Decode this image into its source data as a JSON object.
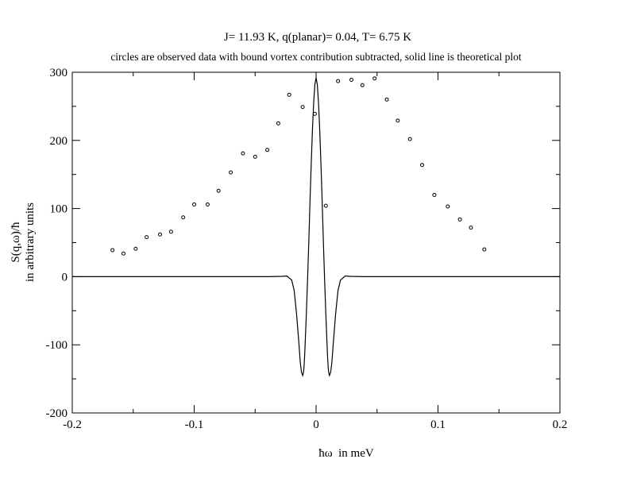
{
  "chart_data": {
    "type": "scatter",
    "title": "J= 11.93 K, q(planar)= 0.04, T= 6.75 K",
    "subtitle": "circles are observed data with bound vortex contribution subtracted, solid line is theoretical plot",
    "xlabel": "ħω  in meV",
    "ylabel_main": "S(q,ω)/ħ",
    "ylabel_sub": "in arbitrary units",
    "xlim": [
      -0.2,
      0.2
    ],
    "ylim": [
      -200,
      300
    ],
    "x_ticks": [
      -0.2,
      -0.1,
      0,
      0.1,
      0.2
    ],
    "x_tick_labels": [
      "-0.2",
      "-0.1",
      "0",
      "0.1",
      "0.2"
    ],
    "y_ticks": [
      -200,
      -100,
      0,
      100,
      200,
      300
    ],
    "y_tick_labels": [
      "-200",
      "-100",
      "0",
      "100",
      "200",
      "300"
    ],
    "grid": false,
    "series": [
      {
        "style": "circles",
        "points": [
          {
            "x": -0.167,
            "y": 39
          },
          {
            "x": -0.158,
            "y": 34
          },
          {
            "x": -0.148,
            "y": 41
          },
          {
            "x": -0.139,
            "y": 58
          },
          {
            "x": -0.128,
            "y": 62
          },
          {
            "x": -0.119,
            "y": 66
          },
          {
            "x": -0.109,
            "y": 87
          },
          {
            "x": -0.1,
            "y": 106
          },
          {
            "x": -0.089,
            "y": 106
          },
          {
            "x": -0.08,
            "y": 126
          },
          {
            "x": -0.07,
            "y": 153
          },
          {
            "x": -0.06,
            "y": 181
          },
          {
            "x": -0.05,
            "y": 176
          },
          {
            "x": -0.04,
            "y": 186
          },
          {
            "x": -0.031,
            "y": 225
          },
          {
            "x": -0.022,
            "y": 267
          },
          {
            "x": -0.011,
            "y": 249
          },
          {
            "x": -0.001,
            "y": 239
          },
          {
            "x": 0.008,
            "y": 104
          },
          {
            "x": 0.018,
            "y": 287
          },
          {
            "x": 0.029,
            "y": 289
          },
          {
            "x": 0.038,
            "y": 281
          },
          {
            "x": 0.048,
            "y": 291
          },
          {
            "x": 0.058,
            "y": 260
          },
          {
            "x": 0.067,
            "y": 229
          },
          {
            "x": 0.077,
            "y": 202
          },
          {
            "x": 0.087,
            "y": 164
          },
          {
            "x": 0.097,
            "y": 120
          },
          {
            "x": 0.108,
            "y": 103
          },
          {
            "x": 0.118,
            "y": 84
          },
          {
            "x": 0.127,
            "y": 72
          },
          {
            "x": 0.138,
            "y": 40
          }
        ]
      },
      {
        "style": "solid-line",
        "x": [
          -0.2,
          -0.04,
          -0.028,
          -0.024,
          -0.02,
          -0.018,
          -0.016,
          -0.014,
          -0.013,
          -0.012,
          -0.011,
          -0.0105,
          -0.01,
          -0.0095,
          -0.009,
          -0.008,
          -0.007,
          -0.006,
          -0.005,
          -0.004,
          -0.003,
          -0.002,
          -0.001,
          0,
          0.001,
          0.002,
          0.003,
          0.004,
          0.005,
          0.006,
          0.007,
          0.008,
          0.009,
          0.0095,
          0.01,
          0.0105,
          0.011,
          0.012,
          0.013,
          0.014,
          0.016,
          0.018,
          0.02,
          0.024,
          0.028,
          0.04,
          0.2
        ],
        "y": [
          0,
          0,
          0.5,
          1,
          -5,
          -20,
          -55,
          -100,
          -125,
          -140,
          -145,
          -142,
          -135,
          -120,
          -100,
          -55,
          -5,
          50,
          110,
          165,
          215,
          255,
          282,
          292,
          282,
          255,
          215,
          165,
          110,
          50,
          -5,
          -55,
          -100,
          -120,
          -135,
          -142,
          -145,
          -140,
          -125,
          -100,
          -55,
          -20,
          -5,
          1,
          0.5,
          0,
          0
        ]
      }
    ]
  }
}
